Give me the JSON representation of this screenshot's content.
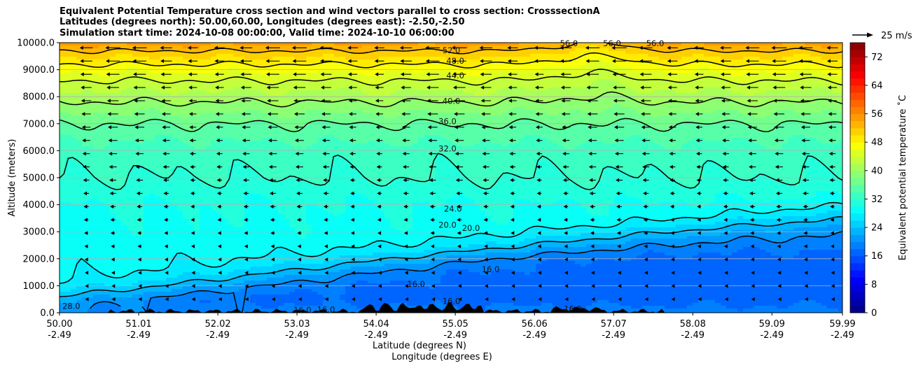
{
  "title": {
    "line1": "Equivalent Potential Temperature cross section and wind vectors parallel to cross section: CrosssectionA",
    "line2": "Latitudes (degrees north): 50.00,60.00, Longitudes (degrees east): -2.50,-2.50",
    "line3": "Simulation start time: 2024-10-08 00:00:00, Valid time: 2024-10-10 06:00:00"
  },
  "chart_data": {
    "type": "heatmap",
    "subtype": "filled contour cross section with wind vectors",
    "xlabel_lat": "Latitude (degrees N)",
    "xlabel_lon": "Longitude (degrees E)",
    "ylabel": "Altitude (meters)",
    "xlim": [
      50.0,
      59.99
    ],
    "ylim": [
      0,
      10000
    ],
    "grid": "horizontal",
    "x_ticks": [
      {
        "value": 50.0,
        "lat": "50.00",
        "lon": "-2.49"
      },
      {
        "value": 51.01,
        "lat": "51.01",
        "lon": "-2.49"
      },
      {
        "value": 52.02,
        "lat": "52.02",
        "lon": "-2.49"
      },
      {
        "value": 53.03,
        "lat": "53.03",
        "lon": "-2.49"
      },
      {
        "value": 54.04,
        "lat": "54.04",
        "lon": "-2.49"
      },
      {
        "value": 55.05,
        "lat": "55.05",
        "lon": "-2.49"
      },
      {
        "value": 56.06,
        "lat": "56.06",
        "lon": "-2.49"
      },
      {
        "value": 57.07,
        "lat": "57.07",
        "lon": "-2.49"
      },
      {
        "value": 58.08,
        "lat": "58.08",
        "lon": "-2.49"
      },
      {
        "value": 59.09,
        "lat": "59.09",
        "lon": "-2.49"
      },
      {
        "value": 59.99,
        "lat": "59.99",
        "lon": "-2.49"
      }
    ],
    "y_ticks": [
      {
        "value": 0,
        "label": "0.0"
      },
      {
        "value": 1000,
        "label": "1000.0"
      },
      {
        "value": 2000,
        "label": "2000.0"
      },
      {
        "value": 3000,
        "label": "3000.0"
      },
      {
        "value": 4000,
        "label": "4000.0"
      },
      {
        "value": 5000,
        "label": "5000.0"
      },
      {
        "value": 6000,
        "label": "6000.0"
      },
      {
        "value": 7000,
        "label": "7000.0"
      },
      {
        "value": 8000,
        "label": "8000.0"
      },
      {
        "value": 9000,
        "label": "9000.0"
      },
      {
        "value": 10000,
        "label": "10000.0"
      }
    ],
    "colorbar": {
      "label": "Equivalent potential temperature ˚C",
      "min": 0,
      "max": 76,
      "tick_values": [
        0,
        8,
        16,
        24,
        32,
        40,
        48,
        56,
        64,
        72
      ],
      "tick_labels": [
        "0",
        "8",
        "16",
        "24",
        "32",
        "40",
        "48",
        "56",
        "64",
        "72"
      ]
    },
    "wind_key": {
      "label": "25 m/s",
      "speed": 25
    },
    "theta_profile_south": [
      {
        "z": 0,
        "t": 27
      },
      {
        "z": 500,
        "t": 28
      },
      {
        "z": 1000,
        "t": 29
      },
      {
        "z": 2000,
        "t": 29
      },
      {
        "z": 3000,
        "t": 29.5
      },
      {
        "z": 4000,
        "t": 30
      },
      {
        "z": 5000,
        "t": 32
      },
      {
        "z": 6000,
        "t": 33
      },
      {
        "z": 7000,
        "t": 36
      },
      {
        "z": 7800,
        "t": 40
      },
      {
        "z": 8600,
        "t": 44
      },
      {
        "z": 9200,
        "t": 48
      },
      {
        "z": 9700,
        "t": 52
      },
      {
        "z": 10000,
        "t": 55
      }
    ],
    "theta_profile_north": [
      {
        "z": 0,
        "t": 19
      },
      {
        "z": 500,
        "t": 17
      },
      {
        "z": 1000,
        "t": 17
      },
      {
        "z": 2000,
        "t": 17
      },
      {
        "z": 3000,
        "t": 20
      },
      {
        "z": 3800,
        "t": 24
      },
      {
        "z": 4400,
        "t": 28
      },
      {
        "z": 5200,
        "t": 30
      },
      {
        "z": 6600,
        "t": 32
      },
      {
        "z": 7200,
        "t": 36
      },
      {
        "z": 8000,
        "t": 40
      },
      {
        "z": 8800,
        "t": 44
      },
      {
        "z": 9400,
        "t": 48
      },
      {
        "z": 9900,
        "t": 52
      },
      {
        "z": 10000,
        "t": 54
      }
    ],
    "contour_levels": [
      16,
      20,
      24,
      28,
      32,
      36,
      40,
      44,
      48,
      52
    ],
    "contour_labels": [
      {
        "text": "52.0",
        "x": 55.0,
        "z": 9720
      },
      {
        "text": "48.0",
        "x": 55.05,
        "z": 9320
      },
      {
        "text": "44.0",
        "x": 55.05,
        "z": 8780
      },
      {
        "text": "40.0",
        "x": 55.0,
        "z": 7840
      },
      {
        "text": "36.0",
        "x": 54.95,
        "z": 7080
      },
      {
        "text": "32.0",
        "x": 54.95,
        "z": 6070
      },
      {
        "text": "24.0",
        "x": 55.02,
        "z": 3850
      },
      {
        "text": "20.0",
        "x": 54.95,
        "z": 3250
      },
      {
        "text": "20.0",
        "x": 55.25,
        "z": 3140
      },
      {
        "text": "16.0",
        "x": 55.0,
        "z": 430
      },
      {
        "text": "16.0",
        "x": 54.55,
        "z": 1060
      },
      {
        "text": "16.0",
        "x": 55.5,
        "z": 1600
      },
      {
        "text": "16.0",
        "x": 53.1,
        "z": 100
      },
      {
        "text": "16.0",
        "x": 53.4,
        "z": 120
      },
      {
        "text": "28.0",
        "x": 50.15,
        "z": 250
      },
      {
        "text": "16.0",
        "x": 56.55,
        "z": 140
      },
      {
        "text": "56.0",
        "x": 56.5,
        "z": 9980
      },
      {
        "text": "56.0",
        "x": 57.05,
        "z": 9980
      },
      {
        "text": "56.0",
        "x": 57.6,
        "z": 9980
      }
    ]
  }
}
